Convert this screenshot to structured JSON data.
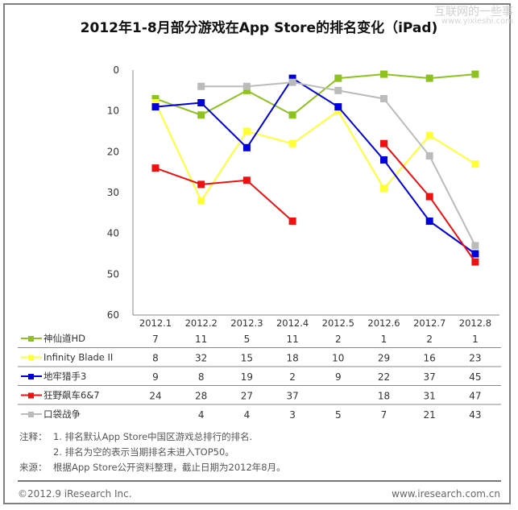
{
  "watermark": {
    "line1": "互联网的一些事",
    "line2": "www.yixieshi.com"
  },
  "chart_data": {
    "type": "line",
    "title": "2012年1-8月部分游戏在App Store的排名变化（iPad)",
    "categories": [
      "2012.1",
      "2012.2",
      "2012.3",
      "2012.4",
      "2012.5",
      "2012.6",
      "2012.7",
      "2012.8"
    ],
    "ylim": [
      0,
      60
    ],
    "y_inverted": true,
    "yticks": [
      0,
      10,
      20,
      30,
      40,
      50,
      60
    ],
    "grid": false,
    "legend": "table-below",
    "series": [
      {
        "name": "神仙道HD",
        "color": "#8dc21f",
        "values": [
          7,
          11,
          5,
          11,
          2,
          1,
          2,
          1
        ]
      },
      {
        "name": "Infinity Blade II",
        "color": "#ffff33",
        "values": [
          8,
          32,
          15,
          18,
          10,
          29,
          16,
          23
        ]
      },
      {
        "name": "地牢猎手3",
        "color": "#0000dd",
        "values": [
          9,
          8,
          19,
          2,
          9,
          22,
          37,
          45
        ]
      },
      {
        "name": "狂野飙车6&7",
        "color": "#ee1111",
        "values": [
          24,
          28,
          27,
          37,
          null,
          18,
          31,
          47
        ]
      },
      {
        "name": "口袋战争",
        "color": "#bbbbbb",
        "values": [
          null,
          4,
          4,
          3,
          5,
          7,
          21,
          43
        ]
      }
    ]
  },
  "notes": {
    "note_label": "注释：",
    "note1": "1. 排名默认App Store中国区游戏总排行的排名.",
    "note2": "2. 排名为空的表示当期排名未进入TOP50。",
    "source_label": "来源：",
    "source": "根据App Store公开资料整理，截止日期为2012年8月。"
  },
  "footer": {
    "copyright": "©2012.9 iResearch Inc.",
    "url": "www.iresearch.com.cn"
  }
}
